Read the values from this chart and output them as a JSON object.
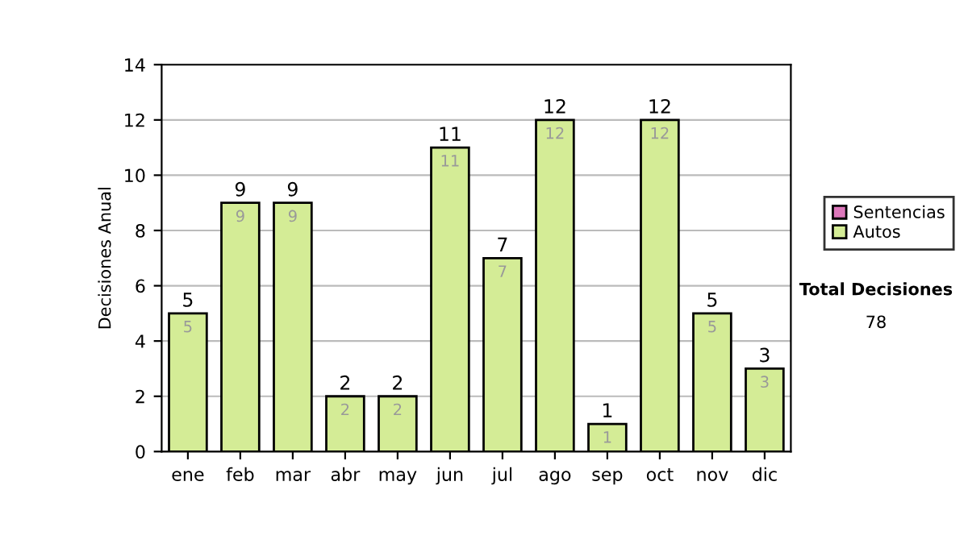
{
  "chart_data": {
    "type": "bar",
    "stacked": true,
    "ylabel": "Decisiones Anual",
    "categories": [
      "ene",
      "feb",
      "mar",
      "abr",
      "may",
      "jun",
      "jul",
      "ago",
      "sep",
      "oct",
      "nov",
      "dic"
    ],
    "series": [
      {
        "name": "Sentencias",
        "color": "#dd77bb",
        "values": [
          0,
          0,
          0,
          0,
          0,
          0,
          0,
          0,
          0,
          0,
          0,
          0
        ]
      },
      {
        "name": "Autos",
        "color": "#d4ec96",
        "values": [
          5,
          9,
          9,
          2,
          2,
          11,
          7,
          12,
          1,
          12,
          5,
          3
        ],
        "value_labels": [
          "5",
          "9",
          "9",
          "2",
          "2",
          "11",
          "7",
          "12",
          "1",
          "12",
          "5",
          "3"
        ]
      }
    ],
    "totals": [
      "5",
      "9",
      "9",
      "2",
      "2",
      "11",
      "7",
      "12",
      "1",
      "12",
      "5",
      "3"
    ],
    "ylim": [
      0,
      14
    ],
    "yticks": [
      0,
      2,
      4,
      6,
      8,
      10,
      12,
      14
    ],
    "grid": "y",
    "legend": "right",
    "annotations": [
      "Total Decisiones",
      "78"
    ]
  }
}
